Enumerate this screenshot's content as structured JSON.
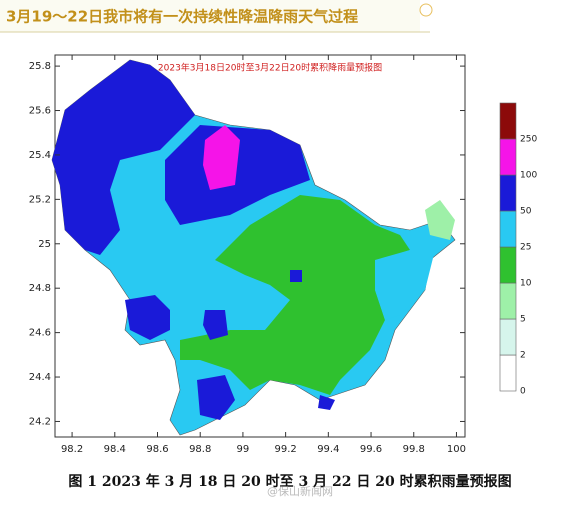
{
  "header": {
    "title": "3月19～22日我市将有一次持续性降温降雨天气过程"
  },
  "map": {
    "title": "2023年3月18日20时至3月22日20时累积降雨量预报图",
    "xlim": [
      98.12,
      100.04
    ],
    "ylim": [
      24.13,
      25.85
    ],
    "xticks": [
      98.2,
      98.4,
      98.6,
      98.8,
      99,
      99.2,
      99.4,
      99.6,
      99.8,
      100
    ],
    "yticks": [
      24.2,
      24.4,
      24.6,
      24.8,
      25,
      25.2,
      25.4,
      25.6,
      25.8
    ]
  },
  "legend": {
    "levels": [
      0,
      2,
      5,
      10,
      25,
      50,
      100,
      250
    ],
    "colors": [
      "#ffffff",
      "#d6f5ec",
      "#9ef0a8",
      "#2fc12f",
      "#29c9f2",
      "#1a1ad8",
      "#f514e8",
      "#8c0a0a"
    ]
  },
  "caption": "图 1  2023 年 3 月 18 日 20 时至 3 月 22 日 20 时累积雨量预报图",
  "watermark": "@保山新闻网"
}
